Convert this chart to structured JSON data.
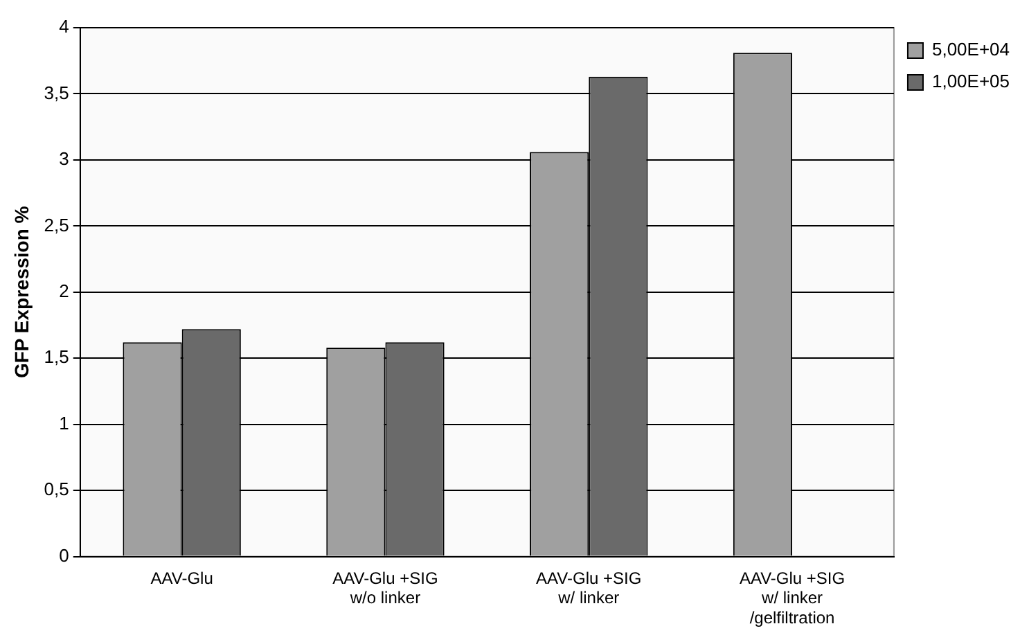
{
  "chart_data": {
    "type": "bar",
    "ylabel": "GFP Expression %",
    "categories": [
      "AAV-Glu",
      "AAV-Glu +SIG w/o linker",
      "AAV-Glu +SIG w/ linker",
      "AAV-Glu +SIG w/ linker /gelfiltration"
    ],
    "series": [
      {
        "name": "5,00E+04",
        "color": "#a0a0a0",
        "values": [
          1.62,
          1.58,
          3.06,
          3.81
        ]
      },
      {
        "name": "1,00E+05",
        "color": "#6a6a6a",
        "values": [
          1.72,
          1.62,
          3.63,
          null
        ]
      }
    ],
    "ylim": [
      0,
      4
    ],
    "yticks": [
      0,
      {
        "value": 0.5,
        "label": "0,5"
      },
      1,
      {
        "value": 1.5,
        "label": "1,5"
      },
      2,
      {
        "value": 2.5,
        "label": "2,5"
      },
      3,
      {
        "value": 3.5,
        "label": "3,5"
      },
      4
    ],
    "grid": "y",
    "legend": "right"
  }
}
